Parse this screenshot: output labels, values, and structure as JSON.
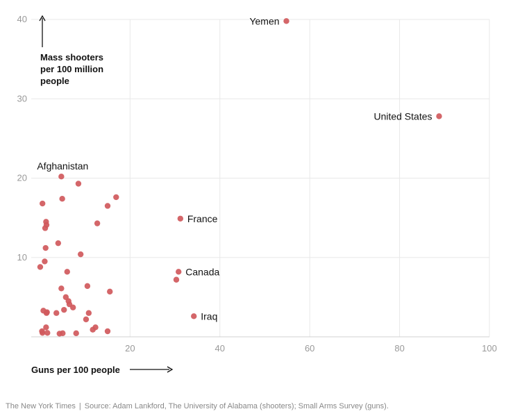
{
  "chart_data": {
    "type": "scatter",
    "xlabel": "Guns per 100 people",
    "ylabel": [
      "Mass shooters",
      "per 100 million",
      "people"
    ],
    "xlim": [
      -2,
      100
    ],
    "ylim": [
      0,
      40
    ],
    "xticks": [
      20,
      40,
      60,
      80,
      100
    ],
    "yticks": [
      10,
      20,
      30,
      40
    ],
    "grid": true,
    "point_color": "#d0595c",
    "points": [
      {
        "x": 54.8,
        "y": 39.8,
        "label": "Yemen"
      },
      {
        "x": 88.8,
        "y": 27.8,
        "label": "United States"
      },
      {
        "x": 4.7,
        "y": 20.2,
        "label": "Afghanistan"
      },
      {
        "x": 31.2,
        "y": 14.9,
        "label": "France"
      },
      {
        "x": 30.8,
        "y": 8.2,
        "label": "Canada"
      },
      {
        "x": 34.2,
        "y": 2.6,
        "label": "Iraq"
      },
      {
        "x": 30.3,
        "y": 7.2
      },
      {
        "x": 8.5,
        "y": 19.3
      },
      {
        "x": 16.9,
        "y": 17.6
      },
      {
        "x": 4.9,
        "y": 17.4
      },
      {
        "x": 0.5,
        "y": 16.8
      },
      {
        "x": 15.0,
        "y": 16.5
      },
      {
        "x": 1.3,
        "y": 14.5
      },
      {
        "x": 1.4,
        "y": 14.1
      },
      {
        "x": 1.1,
        "y": 13.7
      },
      {
        "x": 12.7,
        "y": 14.3
      },
      {
        "x": 4.0,
        "y": 11.8
      },
      {
        "x": 1.2,
        "y": 11.2
      },
      {
        "x": 9.0,
        "y": 10.4
      },
      {
        "x": 1.0,
        "y": 9.5
      },
      {
        "x": 0.0,
        "y": 8.8
      },
      {
        "x": 6.0,
        "y": 8.2
      },
      {
        "x": 10.5,
        "y": 6.4
      },
      {
        "x": 4.7,
        "y": 6.1
      },
      {
        "x": 15.5,
        "y": 5.7
      },
      {
        "x": 5.7,
        "y": 5.0
      },
      {
        "x": 6.3,
        "y": 4.5
      },
      {
        "x": 6.5,
        "y": 4.1
      },
      {
        "x": 7.3,
        "y": 3.7
      },
      {
        "x": 5.3,
        "y": 3.4
      },
      {
        "x": 0.7,
        "y": 3.3
      },
      {
        "x": 1.5,
        "y": 3.1
      },
      {
        "x": 1.4,
        "y": 3.0
      },
      {
        "x": 3.6,
        "y": 3.0
      },
      {
        "x": 10.8,
        "y": 3.0
      },
      {
        "x": 10.2,
        "y": 2.2
      },
      {
        "x": 1.3,
        "y": 1.2
      },
      {
        "x": 12.3,
        "y": 1.2
      },
      {
        "x": 11.7,
        "y": 0.9
      },
      {
        "x": 15.0,
        "y": 0.7
      },
      {
        "x": 0.4,
        "y": 0.7
      },
      {
        "x": 0.5,
        "y": 0.5
      },
      {
        "x": 1.6,
        "y": 0.5
      },
      {
        "x": 5.0,
        "y": 0.45
      },
      {
        "x": 4.3,
        "y": 0.4
      },
      {
        "x": 8.0,
        "y": 0.45
      }
    ]
  },
  "footer": {
    "publisher": "The New York Times",
    "separator": "|",
    "source": "Source: Adam Lankford, The University of Alabama (shooters); Small Arms Survey (guns)."
  }
}
